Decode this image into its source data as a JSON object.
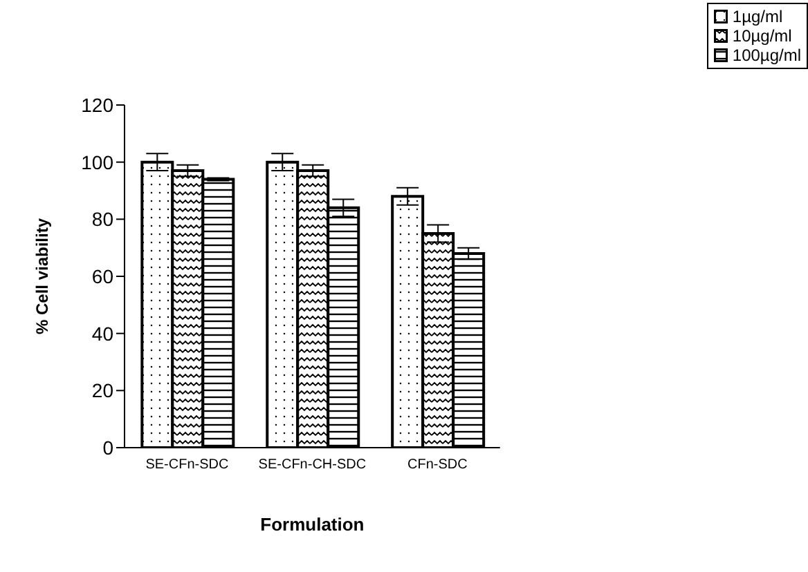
{
  "chart_data": {
    "type": "bar",
    "xlabel": "Formulation",
    "ylabel": "% Cell viability",
    "categories": [
      "SE-CFn-SDC",
      "SE-CFn-CH-SDC",
      "CFn-SDC"
    ],
    "series": [
      {
        "name": "1µg/ml",
        "color": "#000000",
        "values": [
          100,
          100,
          88
        ],
        "errors": [
          3,
          3,
          3
        ]
      },
      {
        "name": "10µg/ml",
        "color": "#000000",
        "values": [
          97,
          97,
          75
        ],
        "errors": [
          2,
          2,
          3
        ]
      },
      {
        "name": "100µg/ml",
        "color": "#000000",
        "values": [
          94,
          84,
          68
        ],
        "errors": [
          0.5,
          3,
          2
        ]
      }
    ],
    "ylim": [
      0,
      120
    ],
    "yticks": [
      0,
      20,
      40,
      60,
      80,
      100,
      120
    ],
    "grid": false,
    "legend": "top right"
  }
}
